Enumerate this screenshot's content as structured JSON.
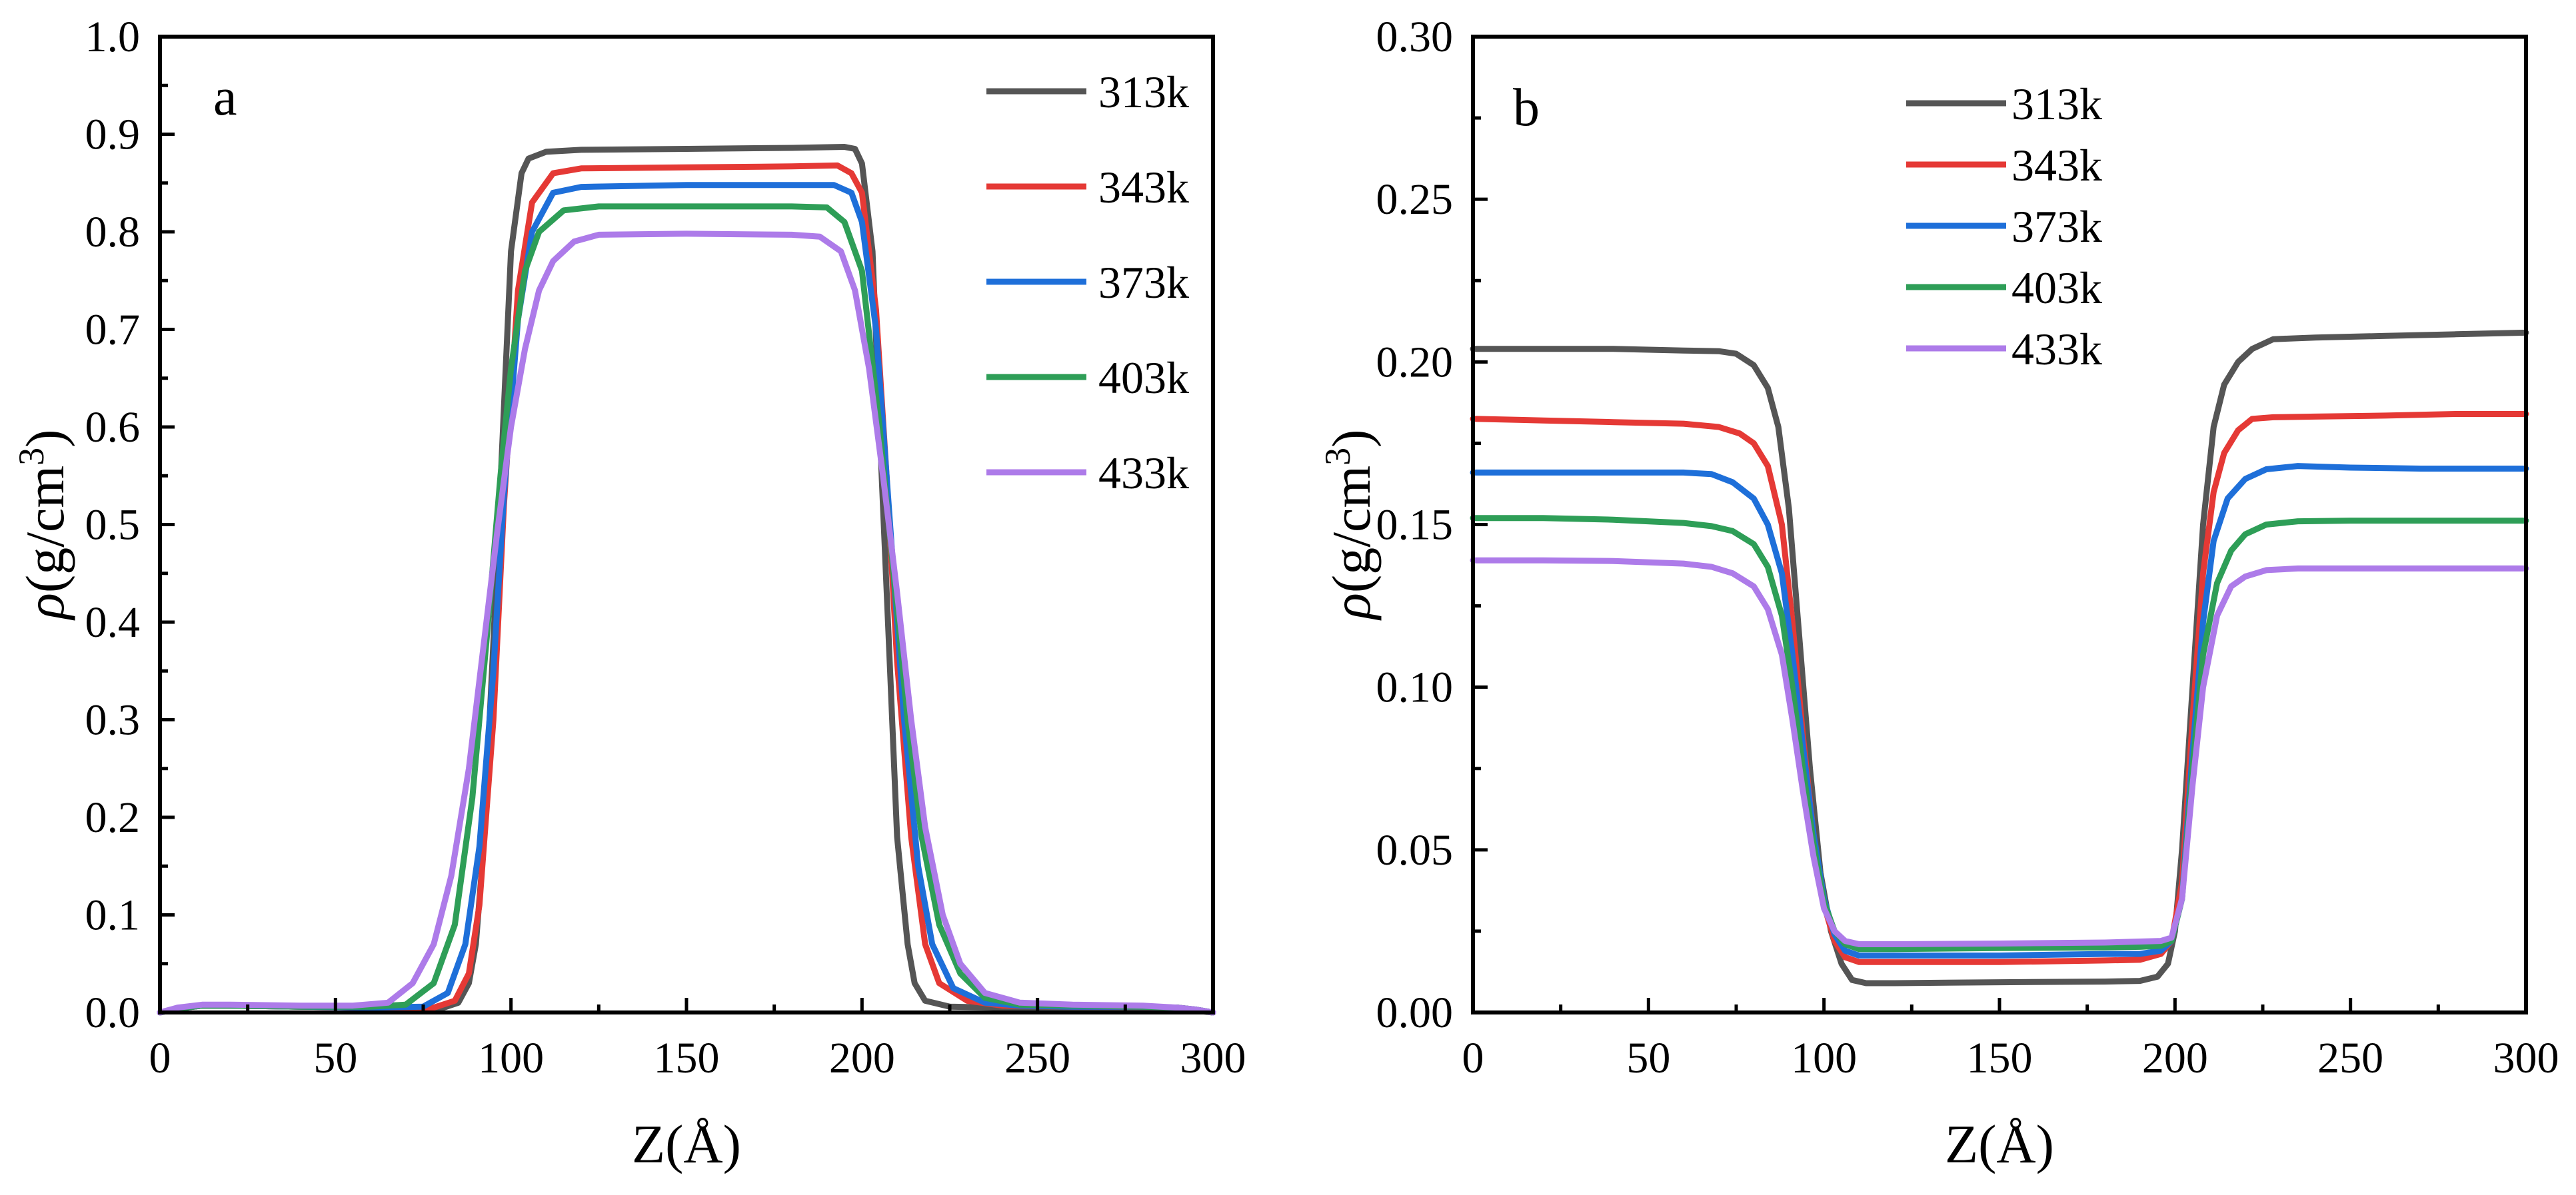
{
  "chart_data": [
    {
      "type": "line",
      "panel_label": "a",
      "title": "",
      "xlabel": "Z(Å)",
      "ylabel_prefix": "ρ",
      "ylabel_main": "(g/cm",
      "ylabel_sup": "3",
      "ylabel_suffix": ")",
      "xlim": [
        0,
        300
      ],
      "ylim": [
        0,
        1.0
      ],
      "xticks": [
        0,
        50,
        100,
        150,
        200,
        250,
        300
      ],
      "xtick_labels": [
        "0",
        "50",
        "100",
        "150",
        "200",
        "250",
        "300"
      ],
      "yticks": [
        0,
        0.1,
        0.2,
        0.3,
        0.4,
        0.5,
        0.6,
        0.7,
        0.8,
        0.9,
        1.0
      ],
      "ytick_labels": [
        "0.0",
        "0.1",
        "0.2",
        "0.3",
        "0.4",
        "0.5",
        "0.6",
        "0.7",
        "0.8",
        "0.9",
        "1.0"
      ],
      "legend_position": "top-right",
      "series": [
        {
          "name": "313k",
          "color": "#555555",
          "x": [
            0,
            5,
            12,
            20,
            40,
            60,
            80,
            85,
            88,
            90,
            92,
            95,
            98,
            100,
            103,
            105,
            110,
            120,
            150,
            180,
            195,
            198,
            200,
            203,
            205,
            208,
            210,
            213,
            215,
            218,
            225,
            240,
            260,
            280,
            290,
            295,
            300
          ],
          "y": [
            0,
            0.004,
            0.007,
            0.007,
            0.006,
            0.005,
            0.004,
            0.01,
            0.03,
            0.07,
            0.16,
            0.38,
            0.62,
            0.78,
            0.86,
            0.875,
            0.882,
            0.884,
            0.885,
            0.886,
            0.887,
            0.885,
            0.87,
            0.78,
            0.6,
            0.35,
            0.18,
            0.07,
            0.03,
            0.012,
            0.006,
            0.005,
            0.005,
            0.005,
            0.004,
            0.002,
            0
          ]
        },
        {
          "name": "343k",
          "color": "#e53935",
          "x": [
            0,
            5,
            12,
            20,
            40,
            60,
            78,
            84,
            88,
            91,
            95,
            98,
            102,
            106,
            112,
            120,
            150,
            180,
            193,
            197,
            200,
            204,
            207,
            210,
            214,
            218,
            222,
            230,
            240,
            260,
            280,
            290,
            295,
            300
          ],
          "y": [
            0,
            0.004,
            0.007,
            0.007,
            0.006,
            0.005,
            0.005,
            0.012,
            0.04,
            0.11,
            0.3,
            0.52,
            0.74,
            0.83,
            0.86,
            0.865,
            0.866,
            0.867,
            0.868,
            0.86,
            0.84,
            0.72,
            0.55,
            0.36,
            0.18,
            0.07,
            0.03,
            0.012,
            0.007,
            0.006,
            0.006,
            0.005,
            0.003,
            0
          ]
        },
        {
          "name": "373k",
          "color": "#1e6fd9",
          "x": [
            0,
            5,
            12,
            20,
            40,
            60,
            75,
            82,
            87,
            91,
            95,
            98,
            102,
            106,
            112,
            120,
            150,
            180,
            192,
            197,
            200,
            204,
            208,
            212,
            216,
            220,
            226,
            235,
            245,
            260,
            280,
            290,
            295,
            300
          ],
          "y": [
            0,
            0.004,
            0.007,
            0.007,
            0.006,
            0.005,
            0.006,
            0.02,
            0.07,
            0.17,
            0.35,
            0.53,
            0.71,
            0.8,
            0.84,
            0.846,
            0.848,
            0.848,
            0.848,
            0.84,
            0.81,
            0.7,
            0.5,
            0.3,
            0.15,
            0.07,
            0.025,
            0.01,
            0.007,
            0.006,
            0.006,
            0.005,
            0.003,
            0
          ]
        },
        {
          "name": "403k",
          "color": "#2e9e57",
          "x": [
            0,
            5,
            12,
            20,
            40,
            60,
            70,
            78,
            84,
            89,
            93,
            97,
            100,
            104,
            108,
            115,
            125,
            150,
            180,
            190,
            195,
            200,
            205,
            209,
            213,
            217,
            222,
            228,
            235,
            245,
            260,
            280,
            290,
            295,
            300
          ],
          "y": [
            0,
            0.004,
            0.007,
            0.007,
            0.006,
            0.006,
            0.008,
            0.03,
            0.09,
            0.22,
            0.38,
            0.55,
            0.66,
            0.76,
            0.8,
            0.822,
            0.826,
            0.826,
            0.826,
            0.825,
            0.81,
            0.76,
            0.6,
            0.45,
            0.3,
            0.18,
            0.09,
            0.04,
            0.015,
            0.008,
            0.007,
            0.006,
            0.005,
            0.003,
            0
          ]
        },
        {
          "name": "433k",
          "color": "#ad7be9",
          "x": [
            0,
            5,
            12,
            20,
            40,
            55,
            65,
            72,
            78,
            83,
            88,
            92,
            96,
            100,
            104,
            108,
            112,
            118,
            125,
            150,
            180,
            188,
            194,
            198,
            202,
            206,
            210,
            214,
            218,
            223,
            228,
            235,
            245,
            260,
            280,
            290,
            295,
            300
          ],
          "y": [
            0,
            0.005,
            0.008,
            0.008,
            0.007,
            0.007,
            0.01,
            0.03,
            0.07,
            0.14,
            0.25,
            0.37,
            0.49,
            0.6,
            0.68,
            0.74,
            0.77,
            0.79,
            0.797,
            0.798,
            0.797,
            0.795,
            0.78,
            0.74,
            0.66,
            0.55,
            0.43,
            0.3,
            0.19,
            0.1,
            0.05,
            0.02,
            0.01,
            0.008,
            0.007,
            0.005,
            0.003,
            0
          ]
        }
      ]
    },
    {
      "type": "line",
      "panel_label": "b",
      "title": "",
      "xlabel": "Z(Å)",
      "ylabel_prefix": "ρ",
      "ylabel_main": "(g/cm",
      "ylabel_sup": "3",
      "ylabel_suffix": ")",
      "xlim": [
        0,
        300
      ],
      "ylim": [
        0,
        0.3
      ],
      "xticks": [
        0,
        50,
        100,
        150,
        200,
        250,
        300
      ],
      "xtick_labels": [
        "0",
        "50",
        "100",
        "150",
        "200",
        "250",
        "300"
      ],
      "yticks": [
        0,
        0.05,
        0.1,
        0.15,
        0.2,
        0.25,
        0.3
      ],
      "ytick_labels": [
        "0.00",
        "0.05",
        "0.10",
        "0.15",
        "0.20",
        "0.25",
        "0.30"
      ],
      "legend_position": "top-center",
      "series": [
        {
          "name": "313k",
          "color": "#555555",
          "x": [
            0,
            20,
            40,
            60,
            70,
            75,
            80,
            84,
            87,
            90,
            93,
            96,
            99,
            102,
            105,
            108,
            112,
            120,
            150,
            180,
            190,
            195,
            198,
            200,
            202,
            205,
            208,
            211,
            214,
            218,
            222,
            228,
            240,
            260,
            280,
            300
          ],
          "y": [
            0.204,
            0.204,
            0.204,
            0.2035,
            0.2033,
            0.2025,
            0.199,
            0.192,
            0.18,
            0.155,
            0.115,
            0.075,
            0.043,
            0.025,
            0.015,
            0.01,
            0.009,
            0.009,
            0.0093,
            0.0095,
            0.0097,
            0.011,
            0.015,
            0.025,
            0.05,
            0.1,
            0.15,
            0.18,
            0.193,
            0.2,
            0.204,
            0.207,
            0.2075,
            0.208,
            0.2085,
            0.209
          ]
        },
        {
          "name": "343k",
          "color": "#e53935",
          "x": [
            0,
            20,
            40,
            60,
            70,
            76,
            80,
            84,
            88,
            91,
            94,
            97,
            100,
            103,
            106,
            110,
            120,
            150,
            180,
            190,
            196,
            199,
            202,
            205,
            208,
            211,
            214,
            218,
            222,
            228,
            240,
            260,
            280,
            300
          ],
          "y": [
            0.1825,
            0.182,
            0.1815,
            0.181,
            0.18,
            0.178,
            0.175,
            0.168,
            0.15,
            0.12,
            0.085,
            0.055,
            0.033,
            0.022,
            0.017,
            0.0155,
            0.0155,
            0.0155,
            0.016,
            0.0162,
            0.018,
            0.022,
            0.04,
            0.09,
            0.135,
            0.16,
            0.172,
            0.179,
            0.1825,
            0.183,
            0.1832,
            0.1835,
            0.184,
            0.184
          ]
        },
        {
          "name": "373k",
          "color": "#1e6fd9",
          "x": [
            0,
            20,
            40,
            60,
            68,
            74,
            80,
            84,
            88,
            91,
            94,
            97,
            100,
            103,
            106,
            110,
            120,
            150,
            180,
            190,
            196,
            199,
            202,
            205,
            208,
            211,
            215,
            220,
            226,
            235,
            250,
            270,
            300
          ],
          "y": [
            0.166,
            0.166,
            0.166,
            0.166,
            0.1655,
            0.163,
            0.158,
            0.15,
            0.135,
            0.11,
            0.082,
            0.055,
            0.035,
            0.024,
            0.019,
            0.0175,
            0.0175,
            0.0175,
            0.018,
            0.018,
            0.019,
            0.022,
            0.035,
            0.08,
            0.12,
            0.145,
            0.158,
            0.164,
            0.167,
            0.168,
            0.1675,
            0.1672,
            0.1672
          ]
        },
        {
          "name": "403k",
          "color": "#2e9e57",
          "x": [
            0,
            20,
            40,
            60,
            68,
            74,
            80,
            84,
            88,
            91,
            94,
            97,
            100,
            103,
            106,
            110,
            120,
            150,
            180,
            190,
            196,
            199,
            202,
            205,
            208,
            212,
            216,
            220,
            226,
            235,
            250,
            270,
            300
          ],
          "y": [
            0.152,
            0.152,
            0.1515,
            0.1505,
            0.1495,
            0.148,
            0.144,
            0.137,
            0.122,
            0.1,
            0.075,
            0.052,
            0.034,
            0.025,
            0.021,
            0.0195,
            0.0195,
            0.0198,
            0.02,
            0.0202,
            0.0205,
            0.022,
            0.035,
            0.075,
            0.11,
            0.132,
            0.142,
            0.147,
            0.15,
            0.151,
            0.1512,
            0.1512,
            0.1512
          ]
        },
        {
          "name": "433k",
          "color": "#ad7be9",
          "x": [
            0,
            20,
            40,
            60,
            68,
            74,
            80,
            84,
            88,
            91,
            94,
            97,
            100,
            103,
            106,
            110,
            120,
            150,
            180,
            190,
            196,
            199,
            202,
            205,
            208,
            212,
            216,
            220,
            226,
            235,
            250,
            270,
            300
          ],
          "y": [
            0.139,
            0.139,
            0.1388,
            0.138,
            0.137,
            0.135,
            0.131,
            0.124,
            0.11,
            0.09,
            0.068,
            0.048,
            0.032,
            0.025,
            0.022,
            0.021,
            0.021,
            0.0212,
            0.0215,
            0.0218,
            0.022,
            0.023,
            0.035,
            0.07,
            0.1,
            0.122,
            0.131,
            0.134,
            0.136,
            0.1365,
            0.1365,
            0.1365,
            0.1365
          ]
        }
      ]
    }
  ]
}
